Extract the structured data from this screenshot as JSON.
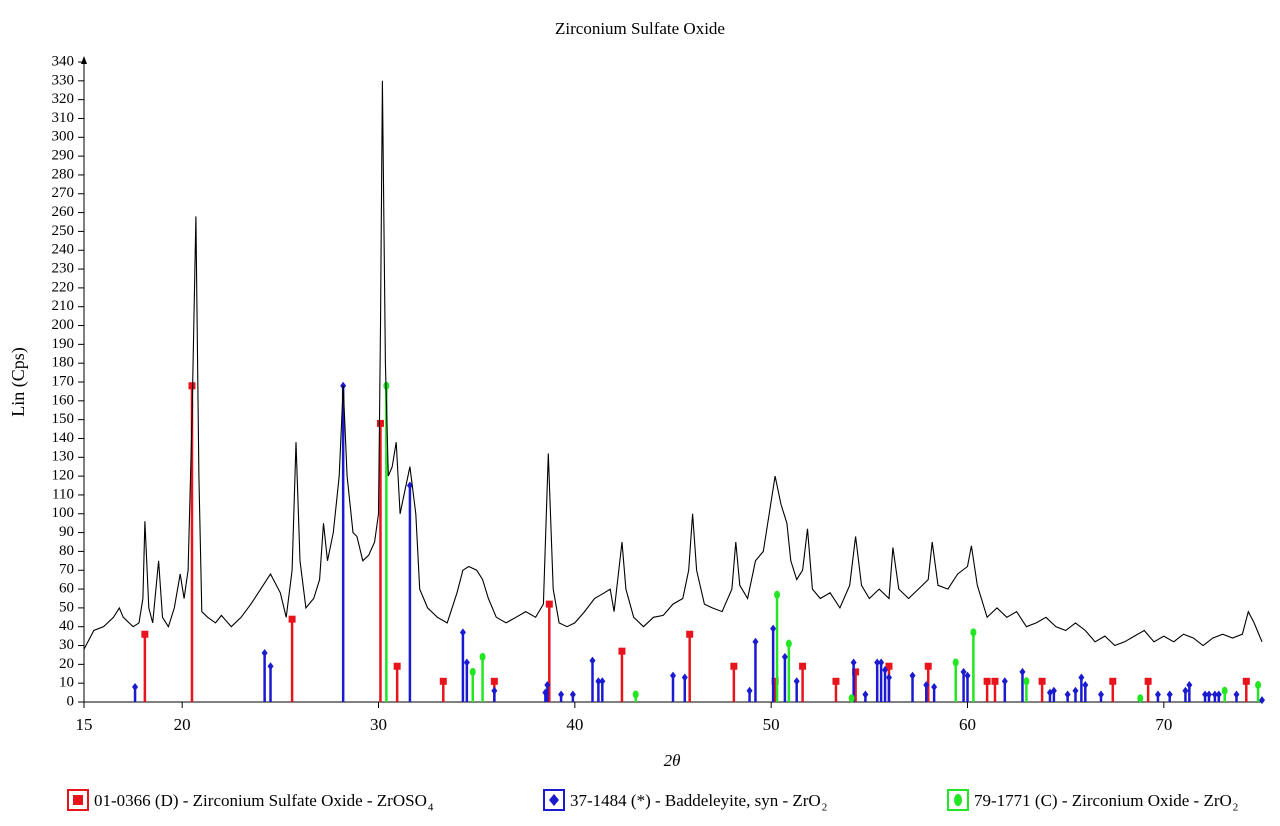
{
  "chart_data": {
    "type": "line",
    "title": "Zirconium Sulfate Oxide",
    "xlabel": "2θ",
    "ylabel": "Lin (Cps)",
    "xlim": [
      15,
      75
    ],
    "ylim": [
      0,
      340
    ],
    "xticks": [
      15,
      20,
      30,
      40,
      50,
      60,
      70
    ],
    "yticks": [
      0,
      10,
      20,
      30,
      40,
      50,
      60,
      70,
      80,
      90,
      100,
      110,
      120,
      130,
      140,
      150,
      160,
      170,
      180,
      190,
      200,
      210,
      220,
      230,
      240,
      250,
      260,
      270,
      280,
      290,
      300,
      310,
      320,
      330,
      340
    ],
    "pattern": {
      "color": "#000000",
      "x": [
        15,
        15.5,
        16,
        16.5,
        16.8,
        17,
        17.5,
        17.8,
        18,
        18.1,
        18.3,
        18.5,
        18.8,
        19,
        19.3,
        19.6,
        19.9,
        20.1,
        20.3,
        20.5,
        20.7,
        20.85,
        21,
        21.3,
        21.7,
        22,
        22.5,
        23,
        23.5,
        24,
        24.5,
        25,
        25.3,
        25.6,
        25.8,
        26,
        26.3,
        26.7,
        27,
        27.2,
        27.4,
        27.7,
        28,
        28.2,
        28.4,
        28.7,
        28.9,
        29.2,
        29.5,
        29.8,
        30,
        30.1,
        30.2,
        30.35,
        30.5,
        30.7,
        30.9,
        31.1,
        31.3,
        31.6,
        31.9,
        32.1,
        32.5,
        33,
        33.5,
        34,
        34.3,
        34.6,
        35,
        35.3,
        35.6,
        36,
        36.5,
        37,
        37.5,
        38,
        38.4,
        38.65,
        38.9,
        39.2,
        39.6,
        40,
        40.5,
        41,
        41.5,
        41.8,
        42,
        42.4,
        42.6,
        43,
        43.5,
        44,
        44.5,
        45,
        45.5,
        45.8,
        46,
        46.2,
        46.6,
        47,
        47.5,
        48,
        48.2,
        48.4,
        48.8,
        49.2,
        49.6,
        49.9,
        50.2,
        50.5,
        50.8,
        51,
        51.3,
        51.6,
        51.85,
        52.1,
        52.5,
        53,
        53.5,
        54,
        54.3,
        54.6,
        55,
        55.5,
        56,
        56.2,
        56.5,
        57,
        57.5,
        58,
        58.2,
        58.5,
        59,
        59.5,
        60,
        60.2,
        60.5,
        61,
        61.5,
        62,
        62.5,
        63,
        63.5,
        64,
        64.5,
        65,
        65.5,
        66,
        66.5,
        67,
        67.5,
        68,
        68.5,
        69,
        69.5,
        70,
        70.5,
        71,
        71.5,
        72,
        72.5,
        73,
        73.5,
        74,
        74.3,
        74.6,
        75
      ],
      "values": [
        28,
        38,
        40,
        45,
        50,
        45,
        40,
        42,
        55,
        96,
        50,
        42,
        75,
        45,
        40,
        50,
        68,
        55,
        70,
        150,
        258,
        120,
        48,
        45,
        42,
        46,
        40,
        45,
        52,
        60,
        68,
        58,
        45,
        70,
        138,
        75,
        50,
        55,
        65,
        95,
        75,
        90,
        120,
        168,
        120,
        90,
        88,
        75,
        78,
        85,
        100,
        200,
        330,
        180,
        120,
        125,
        138,
        100,
        110,
        125,
        100,
        60,
        50,
        45,
        42,
        58,
        70,
        72,
        70,
        65,
        55,
        45,
        42,
        45,
        48,
        45,
        52,
        132,
        60,
        42,
        40,
        42,
        48,
        55,
        58,
        60,
        48,
        85,
        60,
        45,
        40,
        45,
        46,
        52,
        55,
        70,
        100,
        70,
        52,
        50,
        48,
        60,
        85,
        62,
        55,
        75,
        80,
        100,
        120,
        105,
        95,
        75,
        65,
        70,
        92,
        60,
        55,
        58,
        50,
        62,
        88,
        62,
        55,
        60,
        55,
        82,
        60,
        55,
        60,
        65,
        85,
        62,
        60,
        68,
        72,
        83,
        62,
        45,
        50,
        45,
        48,
        40,
        42,
        45,
        40,
        38,
        42,
        38,
        32,
        35,
        30,
        32,
        35,
        38,
        32,
        35,
        32,
        36,
        34,
        30,
        34,
        36,
        34,
        36,
        48,
        42,
        32
      ]
    },
    "series": [
      {
        "name": "01-0366 (D) - Zirconium Sulfate Oxide - ZrOSO",
        "subscript": "4",
        "color": "#e8141c",
        "marker": "square",
        "x": [
          18.1,
          20.5,
          25.6,
          30.1,
          30.95,
          33.3,
          35.9,
          38.7,
          42.4,
          45.85,
          48.1,
          50.2,
          51.6,
          53.3,
          54.3,
          56.0,
          58.0,
          61.0,
          61.4,
          63.8,
          67.4,
          69.2,
          74.2
        ],
        "values": [
          36,
          168,
          44,
          148,
          19,
          11,
          11,
          52,
          27,
          36,
          19,
          11,
          19,
          11,
          16,
          19,
          19,
          11,
          11,
          11,
          11,
          11,
          11
        ]
      },
      {
        "name": "37-1484 (*) - Baddeleyite, syn - ZrO",
        "subscript": "2",
        "color": "#1a1ad0",
        "marker": "diamond",
        "x": [
          17.6,
          24.2,
          24.5,
          28.2,
          31.6,
          34.3,
          34.5,
          35.9,
          38.5,
          38.6,
          39.3,
          39.9,
          40.9,
          41.2,
          41.4,
          45.0,
          45.6,
          48.9,
          49.2,
          50.1,
          50.7,
          51.3,
          54.2,
          54.8,
          55.4,
          55.6,
          55.8,
          56.0,
          57.2,
          57.9,
          58.3,
          59.8,
          60.0,
          61.9,
          62.8,
          64.2,
          64.4,
          65.1,
          65.5,
          65.8,
          66.0,
          66.8,
          69.7,
          70.3,
          71.1,
          71.3,
          72.1,
          72.3,
          72.6,
          72.8,
          73.7,
          75.0
        ],
        "values": [
          8,
          26,
          19,
          168,
          115,
          37,
          21,
          6,
          5,
          9,
          4,
          4,
          22,
          11,
          11,
          14,
          13,
          6,
          32,
          39,
          24,
          11,
          21,
          4,
          21,
          21,
          17,
          13,
          14,
          9,
          8,
          16,
          14,
          11,
          16,
          5,
          6,
          4,
          6,
          13,
          9,
          4,
          4,
          4,
          6,
          9,
          4,
          4,
          4,
          4,
          4,
          1
        ]
      },
      {
        "name": "79-1771 (C) - Zirconium Oxide - ZrO",
        "subscript": "2",
        "color": "#22e622",
        "marker": "circle",
        "x": [
          30.4,
          34.8,
          35.3,
          43.1,
          50.3,
          50.9,
          54.1,
          59.4,
          60.3,
          63.0,
          68.8,
          73.1,
          74.8
        ],
        "values": [
          168,
          16,
          24,
          4,
          57,
          31,
          2,
          21,
          37,
          11,
          2,
          6,
          9
        ]
      }
    ]
  }
}
